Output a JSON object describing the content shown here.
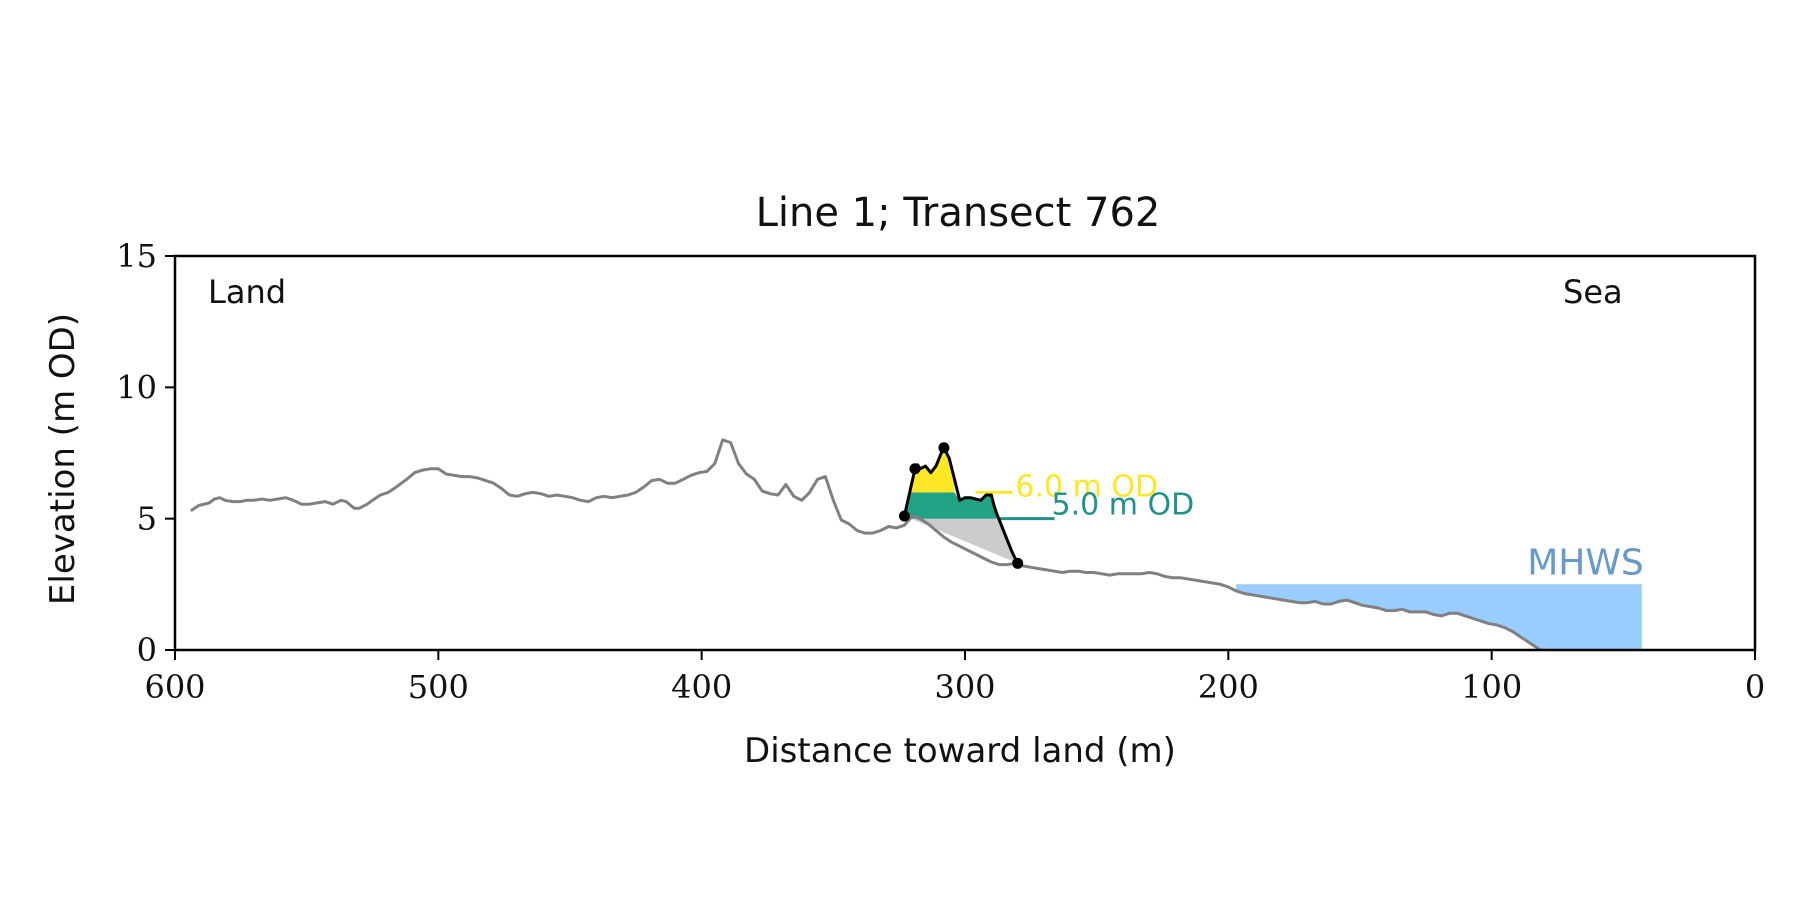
{
  "chart_data": {
    "type": "area",
    "title": "Line 1; Transect 762",
    "xlabel": "Distance toward land (m)",
    "ylabel": "Elevation (m OD)",
    "xlim": [
      600,
      0
    ],
    "ylim": [
      0,
      15
    ],
    "x_ticks": [
      600,
      500,
      400,
      300,
      200,
      100,
      0
    ],
    "y_ticks": [
      0,
      5,
      10,
      15
    ],
    "x_tick_labels": [
      "600",
      "500",
      "400",
      "300",
      "200",
      "100",
      "0"
    ],
    "y_tick_labels": [
      "0",
      "5",
      "10",
      "15"
    ],
    "grid": false,
    "annotations": {
      "land": "Land",
      "sea": "Sea",
      "level_upper": "6.0 m OD",
      "level_lower": "5.0 m OD",
      "mhws": "MHWS"
    },
    "colors": {
      "profile": "#808080",
      "dune_outline": "#000000",
      "upper_fill": "#fde725",
      "lower_fill": "#21a386",
      "base_fill": "#cccccc",
      "mhws_fill": "#99ccff",
      "mhws_text": "#6699cc",
      "upper_text": "#fde725",
      "lower_text": "#21918c"
    },
    "levels": {
      "upper": 6.0,
      "lower": 5.0
    },
    "mhws": {
      "elevation": 2.5,
      "x_start": 197,
      "x_end": 43
    },
    "profile": {
      "x": [
        594,
        591,
        587,
        585,
        583,
        581,
        578,
        575,
        573,
        570,
        567,
        564,
        561,
        558,
        555,
        552,
        549,
        546,
        543,
        540,
        537,
        535,
        532,
        530,
        527,
        525,
        522,
        519,
        516,
        512,
        509,
        506,
        503,
        500,
        497,
        494,
        491,
        488,
        485,
        482,
        479,
        476,
        473,
        470,
        467,
        464,
        461,
        458,
        455,
        452,
        449,
        446,
        443,
        440,
        437,
        434,
        431,
        428,
        425,
        422,
        419,
        416,
        413,
        410,
        407,
        404,
        401,
        398,
        395,
        392,
        389,
        386,
        383,
        380,
        377,
        374,
        371,
        368,
        365,
        362,
        359,
        356,
        353,
        350,
        347,
        344,
        341,
        338,
        335,
        332,
        329,
        326,
        323,
        320,
        317,
        314,
        311,
        308,
        305,
        302,
        299,
        296,
        293,
        290,
        287,
        284,
        281,
        278,
        275,
        272,
        269,
        266,
        263,
        260,
        257,
        254,
        251,
        248,
        245,
        242,
        239,
        236,
        233,
        230,
        227,
        224,
        221,
        218,
        215,
        212,
        209,
        206,
        203,
        200,
        197,
        194,
        191,
        188,
        185,
        182,
        179,
        176,
        173,
        170,
        167,
        164,
        161,
        158,
        155,
        152,
        149,
        146,
        143,
        140,
        137,
        134,
        131,
        128,
        125,
        122,
        119,
        116,
        113,
        110,
        107,
        104,
        101,
        98,
        95,
        92,
        89,
        86,
        83,
        80
      ],
      "y": [
        5.3,
        5.5,
        5.6,
        5.75,
        5.8,
        5.7,
        5.65,
        5.65,
        5.7,
        5.7,
        5.75,
        5.7,
        5.75,
        5.8,
        5.7,
        5.55,
        5.55,
        5.6,
        5.65,
        5.55,
        5.7,
        5.65,
        5.4,
        5.4,
        5.55,
        5.7,
        5.9,
        6.0,
        6.2,
        6.5,
        6.75,
        6.85,
        6.9,
        6.9,
        6.7,
        6.65,
        6.6,
        6.6,
        6.55,
        6.45,
        6.35,
        6.15,
        5.9,
        5.85,
        5.95,
        6.0,
        5.95,
        5.85,
        5.9,
        5.85,
        5.8,
        5.7,
        5.65,
        5.8,
        5.85,
        5.8,
        5.85,
        5.9,
        6.0,
        6.2,
        6.45,
        6.5,
        6.35,
        6.35,
        6.5,
        6.65,
        6.75,
        6.8,
        7.1,
        8.0,
        7.9,
        7.1,
        6.7,
        6.5,
        6.05,
        5.95,
        5.9,
        6.3,
        5.85,
        5.7,
        6.0,
        6.5,
        6.6,
        5.7,
        4.95,
        4.8,
        4.55,
        4.45,
        4.45,
        4.55,
        4.7,
        4.65,
        4.75,
        5.1,
        5.0,
        4.8,
        4.55,
        4.3,
        4.1,
        3.95,
        3.8,
        3.65,
        3.5,
        3.35,
        3.25,
        3.25,
        3.3,
        3.2,
        3.15,
        3.1,
        3.05,
        3.0,
        2.95,
        3.0,
        3.0,
        2.95,
        2.95,
        2.9,
        2.85,
        2.9,
        2.9,
        2.9,
        2.9,
        2.95,
        2.9,
        2.8,
        2.75,
        2.75,
        2.7,
        2.65,
        2.6,
        2.55,
        2.5,
        2.4,
        2.25,
        2.15,
        2.1,
        2.05,
        2.0,
        1.95,
        1.9,
        1.85,
        1.8,
        1.8,
        1.85,
        1.75,
        1.75,
        1.85,
        1.9,
        1.8,
        1.7,
        1.65,
        1.6,
        1.5,
        1.5,
        1.55,
        1.45,
        1.45,
        1.45,
        1.35,
        1.3,
        1.4,
        1.4,
        1.3,
        1.2,
        1.1,
        1.0,
        0.95,
        0.85,
        0.7,
        0.5,
        0.3,
        0.1,
        -0.1
      ]
    },
    "dune": {
      "x": [
        323,
        321,
        319,
        318,
        317,
        315,
        313,
        311,
        309,
        308,
        306,
        304,
        302,
        300,
        298,
        296,
        294,
        292,
        290,
        289,
        288,
        286,
        284,
        282,
        280
      ],
      "y": [
        5.1,
        6.0,
        6.9,
        7.05,
        6.9,
        7.0,
        6.75,
        7.0,
        7.5,
        7.7,
        7.3,
        6.5,
        5.7,
        5.8,
        5.8,
        5.75,
        5.7,
        5.9,
        5.9,
        5.5,
        5.2,
        4.7,
        4.2,
        3.7,
        3.3
      ]
    },
    "dune_points": [
      {
        "x": 323,
        "y": 5.1
      },
      {
        "x": 319,
        "y": 6.9
      },
      {
        "x": 308,
        "y": 7.7
      },
      {
        "x": 280,
        "y": 3.3
      }
    ],
    "level_markers": {
      "upper": {
        "x_start": 296,
        "x_end": 282
      },
      "lower": {
        "x_start": 287,
        "x_end": 266
      }
    }
  }
}
